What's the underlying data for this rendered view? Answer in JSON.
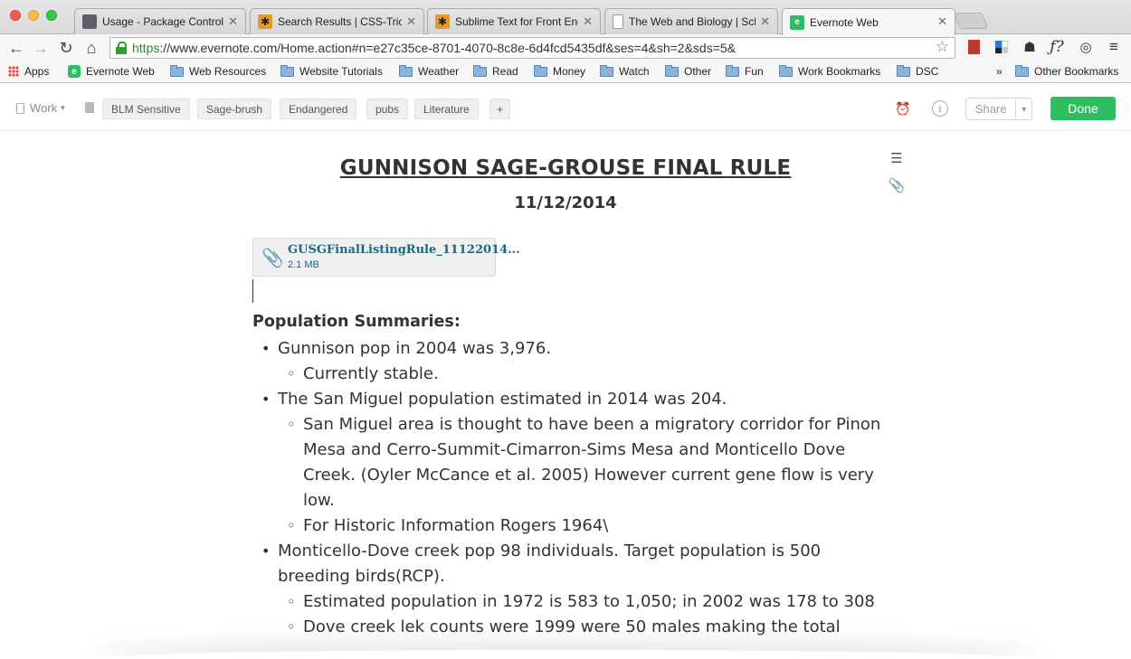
{
  "browser": {
    "tabs": [
      {
        "title": "Usage - Package Control",
        "favicon": "package-control-icon",
        "active": false
      },
      {
        "title": "Search Results | CSS-Tricks",
        "favicon": "css-tricks-icon",
        "active": false
      },
      {
        "title": "Sublime Text for Front End",
        "favicon": "css-tricks-icon",
        "active": false
      },
      {
        "title": "The Web and Biology | Sch",
        "favicon": "document-icon",
        "active": false
      },
      {
        "title": "Evernote Web",
        "favicon": "evernote-icon",
        "active": true
      }
    ],
    "url_scheme": "https",
    "url_rest": "://www.evernote.com/Home.action#n=e27c35ce-8701-4070-8c8e-6d4fcd5435df&ses=4&sh=2&sds=5&",
    "extensions": [
      "bookmark-red-icon",
      "delicious-icon",
      "evernote-elephant-icon",
      "function-icon",
      "sync-icon",
      "menu-icon"
    ],
    "bookmarks": [
      {
        "label": "Apps",
        "type": "apps"
      },
      {
        "label": "Evernote Web",
        "type": "evernote"
      },
      {
        "label": "Web Resources",
        "type": "folder"
      },
      {
        "label": "Website Tutorials",
        "type": "folder"
      },
      {
        "label": "Weather",
        "type": "folder"
      },
      {
        "label": "Read",
        "type": "folder"
      },
      {
        "label": "Money",
        "type": "folder"
      },
      {
        "label": "Watch",
        "type": "folder"
      },
      {
        "label": "Other",
        "type": "folder"
      },
      {
        "label": "Fun",
        "type": "folder"
      },
      {
        "label": "Work Bookmarks",
        "type": "folder"
      },
      {
        "label": "DSC",
        "type": "folder"
      }
    ],
    "bookmarks_overflow": "»",
    "other_bookmarks": "Other Bookmarks"
  },
  "note_header": {
    "notebook": "Work",
    "tags": [
      "BLM Sensitive",
      "Sage-brush",
      "Endangered",
      "pubs",
      "Literature"
    ],
    "add_tag": "+",
    "share_label": "Share",
    "done_label": "Done"
  },
  "note": {
    "title": "GUNNISON SAGE-GROUSE FINAL RULE",
    "date": "11/12/2014",
    "attachment": {
      "name": "GUSGFinalListingRule_11122014...",
      "size": "2.1 MB"
    },
    "section_heading": "Population Summaries:",
    "items": [
      {
        "text": "Gunnison pop in 2004 was 3,976.",
        "sub": [
          "Currently stable."
        ]
      },
      {
        "text": "The San Miguel population estimated in 2014 was 204.",
        "sub": [
          "San Miguel area is thought to have been a migratory corridor for Pinon Mesa and Cerro-Summit-Cimarron-Sims Mesa and Monticello Dove Creek. (Oyler McCance et al. 2005) However current gene flow is very low.",
          "For Historic Information Rogers 1964\\"
        ]
      },
      {
        "text": "Monticello-Dove creek pop 98 individuals. Target population is 500 breeding birds(RCP).",
        "sub": [
          "Estimated population in 1972 is 583 to 1,050; in 2002 was 178 to 308",
          "Dove creek lek counts were 1999 were 50 males making the total"
        ]
      }
    ]
  }
}
